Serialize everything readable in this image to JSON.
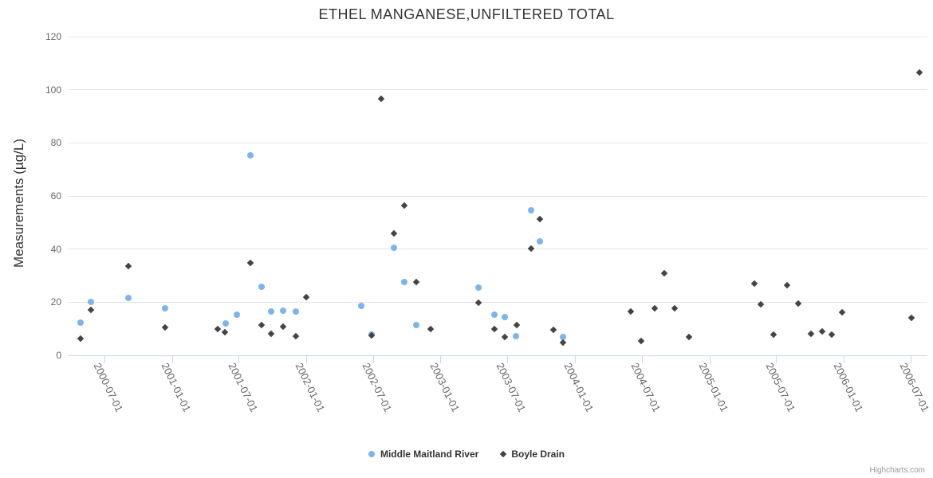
{
  "title": "ETHEL MANGANESE,UNFILTERED TOTAL",
  "credits_label": "Highcharts.com",
  "chart_data": {
    "type": "scatter",
    "title": "ETHEL MANGANESE,UNFILTERED TOTAL",
    "xlabel": "",
    "ylabel": "Measurements (µg/L)",
    "ylim": [
      0,
      120
    ],
    "y_ticks": [
      0,
      20,
      40,
      60,
      80,
      100,
      120
    ],
    "grid": true,
    "legend_position": "bottom",
    "x_axis_type": "datetime",
    "x_min": "2000-03-23",
    "x_max": "2006-08-15",
    "x_ticks": [
      "2000-07-01",
      "2001-01-01",
      "2001-07-01",
      "2002-01-01",
      "2002-07-01",
      "2003-01-01",
      "2003-07-01",
      "2004-01-01",
      "2004-07-01",
      "2005-01-01",
      "2005-07-01",
      "2006-01-01",
      "2006-07-01"
    ],
    "colors": {
      "series_1": "#7cb5ec",
      "series_2": "#434348",
      "grid": "#e6e6e6",
      "axis_line": "#ccd6eb",
      "axis_label": "#666666",
      "title": "#333333",
      "credits": "#999999"
    },
    "series": [
      {
        "name": "Middle Maitland River",
        "marker": "circle",
        "color": "#7cb5ec",
        "points": [
          [
            "2000-04-26",
            12.2
          ],
          [
            "2000-05-25",
            20.0
          ],
          [
            "2000-09-03",
            21.5
          ],
          [
            "2000-12-13",
            17.7
          ],
          [
            "2001-05-27",
            12.1
          ],
          [
            "2001-06-26",
            15.2
          ],
          [
            "2001-08-01",
            75.2
          ],
          [
            "2001-09-01",
            25.8
          ],
          [
            "2001-09-27",
            16.5
          ],
          [
            "2001-10-28",
            16.9
          ],
          [
            "2001-12-02",
            16.5
          ],
          [
            "2002-05-30",
            18.6
          ],
          [
            "2002-06-26",
            7.8
          ],
          [
            "2002-08-26",
            40.4
          ],
          [
            "2002-09-24",
            27.6
          ],
          [
            "2002-10-25",
            11.3
          ],
          [
            "2003-04-14",
            25.4
          ],
          [
            "2003-05-27",
            15.3
          ],
          [
            "2003-06-23",
            14.5
          ],
          [
            "2003-07-24",
            7.3
          ],
          [
            "2003-09-04",
            54.7
          ],
          [
            "2003-09-27",
            43.0
          ],
          [
            "2003-11-29",
            7.0
          ]
        ]
      },
      {
        "name": "Boyle Drain",
        "marker": "diamond",
        "color": "#434348",
        "points": [
          [
            "2000-04-26",
            6.3
          ],
          [
            "2000-05-25",
            17.0
          ],
          [
            "2000-09-03",
            33.7
          ],
          [
            "2000-12-13",
            10.4
          ],
          [
            "2001-05-05",
            9.9
          ],
          [
            "2001-05-23",
            8.6
          ],
          [
            "2001-08-01",
            34.7
          ],
          [
            "2001-09-01",
            11.3
          ],
          [
            "2001-09-27",
            8.1
          ],
          [
            "2001-10-28",
            10.8
          ],
          [
            "2001-12-02",
            7.2
          ],
          [
            "2002-01-01",
            21.9
          ],
          [
            "2002-06-26",
            7.5
          ],
          [
            "2002-07-22",
            96.7
          ],
          [
            "2002-08-26",
            45.8
          ],
          [
            "2002-09-24",
            56.4
          ],
          [
            "2002-10-25",
            27.6
          ],
          [
            "2002-12-03",
            10.0
          ],
          [
            "2003-04-14",
            19.8
          ],
          [
            "2003-05-27",
            10.0
          ],
          [
            "2003-06-24",
            6.8
          ],
          [
            "2003-07-26",
            11.3
          ],
          [
            "2003-09-04",
            40.3
          ],
          [
            "2003-09-27",
            51.2
          ],
          [
            "2003-11-03",
            9.7
          ],
          [
            "2003-11-29",
            4.8
          ],
          [
            "2004-05-31",
            16.6
          ],
          [
            "2004-06-29",
            5.5
          ],
          [
            "2004-08-04",
            17.8
          ],
          [
            "2004-08-30",
            31.0
          ],
          [
            "2004-09-26",
            17.6
          ],
          [
            "2004-11-04",
            6.9
          ],
          [
            "2005-05-01",
            27.0
          ],
          [
            "2005-05-20",
            19.1
          ],
          [
            "2005-06-22",
            7.8
          ],
          [
            "2005-07-29",
            26.4
          ],
          [
            "2005-08-28",
            19.6
          ],
          [
            "2005-10-02",
            8.2
          ],
          [
            "2005-11-01",
            9.1
          ],
          [
            "2005-11-29",
            7.9
          ],
          [
            "2005-12-26",
            16.3
          ],
          [
            "2006-07-02",
            14.1
          ],
          [
            "2006-07-25",
            106.5
          ]
        ]
      }
    ]
  }
}
